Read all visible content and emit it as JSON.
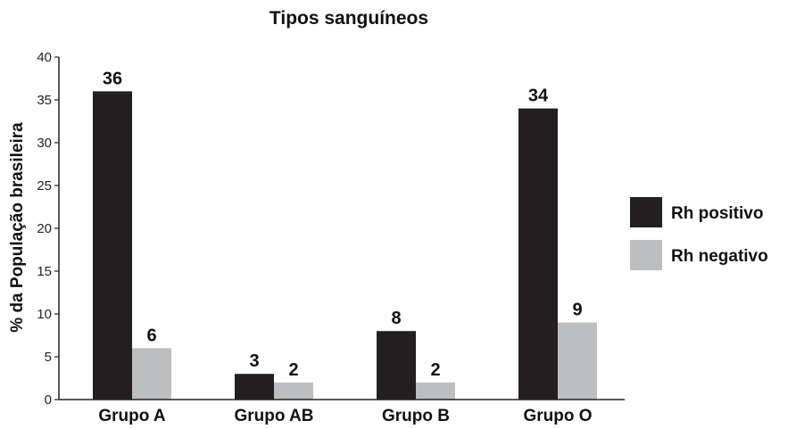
{
  "chart_data": {
    "type": "bar",
    "title": "Tipos sanguíneos",
    "ylabel": "% da População brasileira",
    "xlabel": "",
    "ylim": [
      0,
      40
    ],
    "yticks": [
      0,
      5,
      10,
      15,
      20,
      25,
      30,
      35,
      40
    ],
    "categories": [
      "Grupo A",
      "Grupo AB",
      "Grupo B",
      "Grupo O"
    ],
    "series": [
      {
        "name": "Rh positivo",
        "values": [
          36,
          3,
          8,
          34
        ],
        "color": "#231f20"
      },
      {
        "name": "Rh negativo",
        "values": [
          6,
          2,
          2,
          9
        ],
        "color": "#bcbec0"
      }
    ],
    "grid": false,
    "legend": "right"
  }
}
